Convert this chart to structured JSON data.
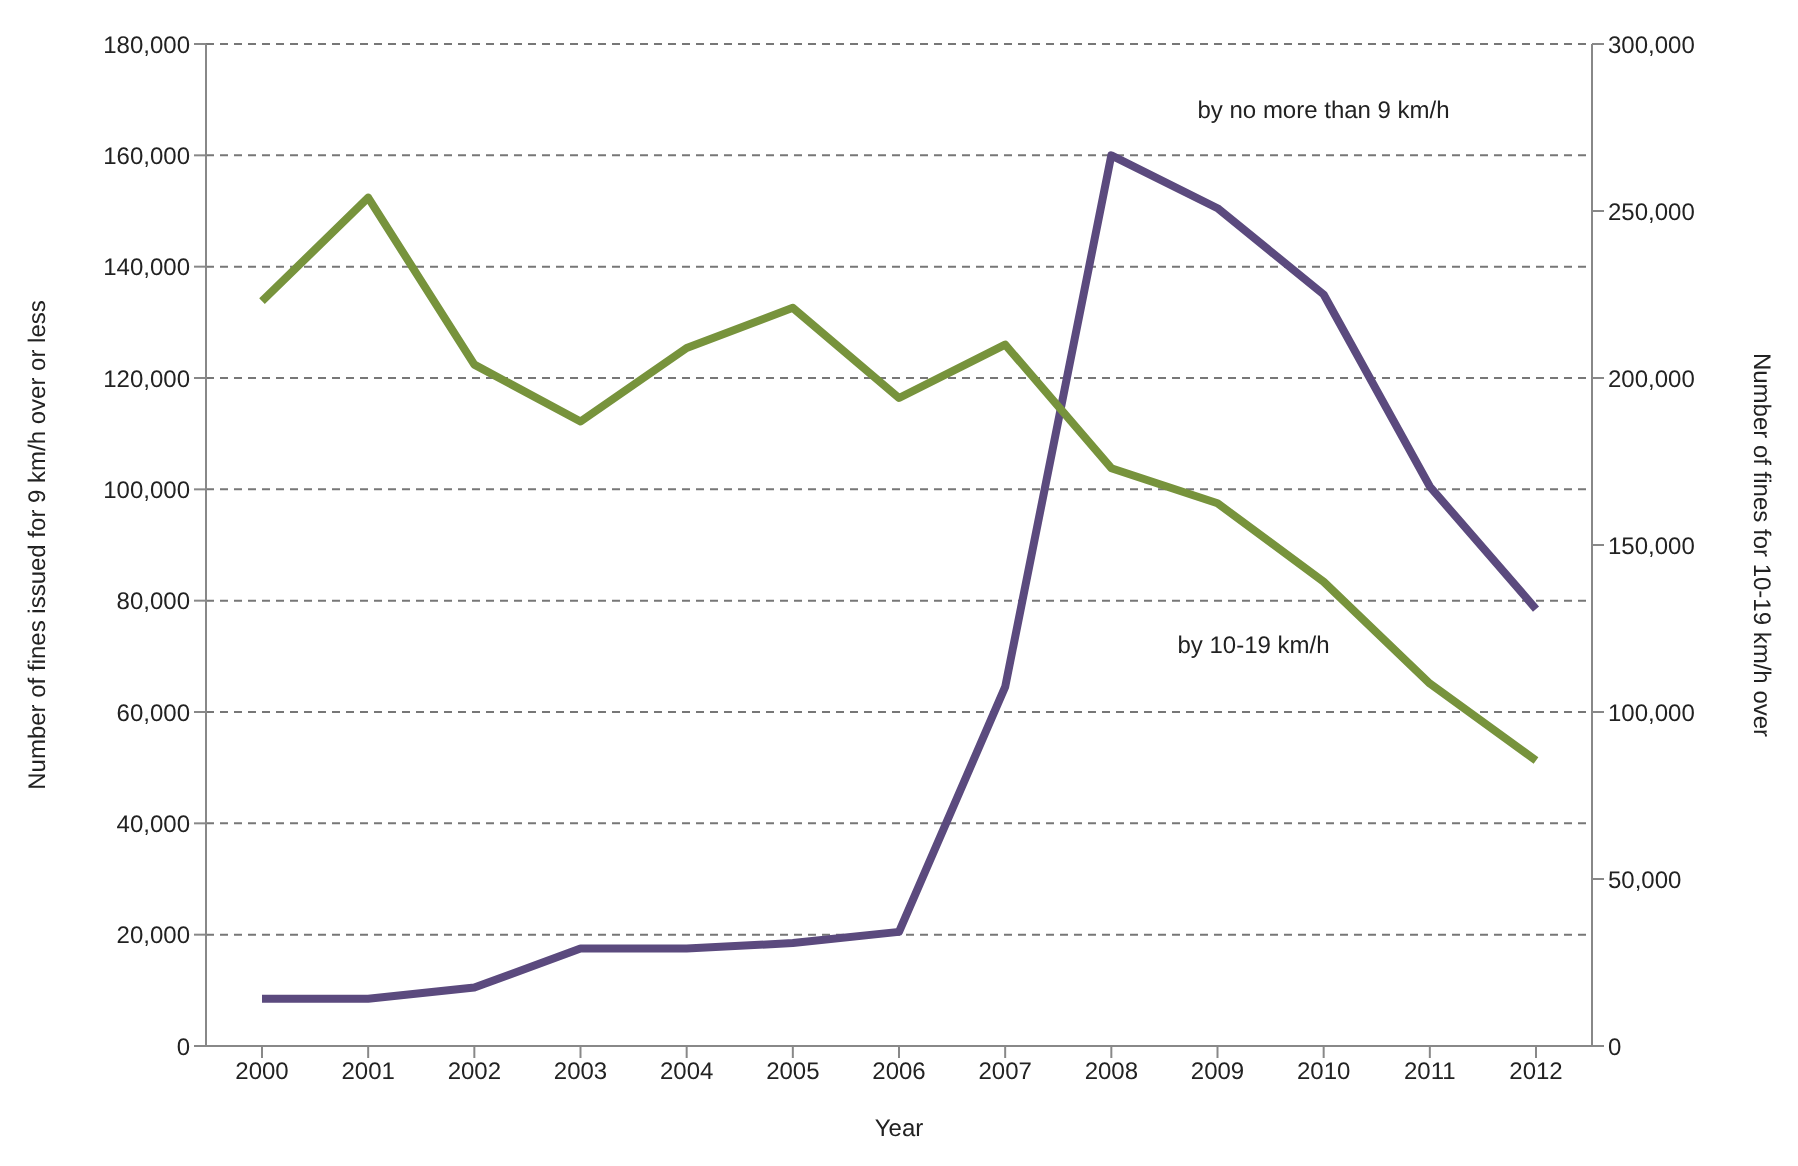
{
  "chart_data": {
    "type": "line",
    "xlabel": "Year",
    "ylabel": "Number of fines issued for 9 km/h over or less",
    "y2label": "Number of fines for 10-19 km/h over",
    "categories": [
      "2000",
      "2001",
      "2002",
      "2003",
      "2004",
      "2005",
      "2006",
      "2007",
      "2008",
      "2009",
      "2010",
      "2011",
      "2012"
    ],
    "series": [
      {
        "name": "by no more than 9 km/h",
        "color": "#5b4a7e",
        "values": [
          8500,
          8500,
          10500,
          17500,
          17500,
          18500,
          20500,
          64500,
          160000,
          150500,
          135000,
          100500,
          78500
        ]
      },
      {
        "name": "by 10-19 km/h",
        "color": "#77933c",
        "axis": "y2",
        "values": [
          223000,
          254000,
          204000,
          187000,
          209000,
          221000,
          194000,
          210000,
          173000,
          162500,
          139000,
          108500,
          85500
        ]
      }
    ],
    "ylim": [
      0,
      180000
    ],
    "yticks": [
      0,
      {
        "value": 20000,
        "label": "20,000"
      },
      {
        "value": 40000,
        "label": "40,000"
      },
      {
        "value": 60000,
        "label": "60,000"
      },
      {
        "value": 80000,
        "label": "80,000"
      },
      {
        "value": 100000,
        "label": "100,000"
      },
      {
        "value": 120000,
        "label": "120,000"
      },
      {
        "value": 140000,
        "label": "140,000"
      },
      {
        "value": 160000,
        "label": "160,000"
      },
      {
        "value": 180000,
        "label": "180,000"
      }
    ],
    "y2lim": [
      0,
      300000
    ],
    "y2ticks": [
      0,
      {
        "value": 50000,
        "label": "50,000"
      },
      {
        "value": 100000,
        "label": "100,000"
      },
      {
        "value": 150000,
        "label": "150,000"
      },
      {
        "value": 200000,
        "label": "200,000"
      },
      {
        "value": 250000,
        "label": "250,000"
      },
      {
        "value": 300000,
        "label": "300,000"
      }
    ],
    "grid": "y",
    "legend": false,
    "marker": "none",
    "line_style": "solid"
  }
}
